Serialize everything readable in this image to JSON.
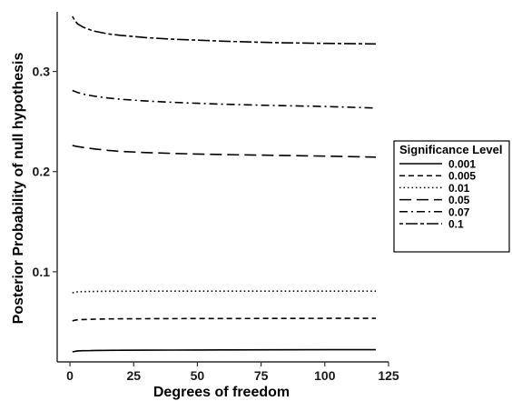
{
  "chart_data": {
    "type": "line",
    "title": "",
    "xlabel": "Degrees of freedom",
    "ylabel": "Posterior Probability of null hypothesis",
    "xlim": [
      -5,
      125
    ],
    "ylim": [
      0.01,
      0.355
    ],
    "x_ticks": [
      0,
      25,
      50,
      75,
      100,
      125
    ],
    "x_tick_labels": [
      "0",
      "25",
      "50",
      "75",
      "100",
      "125"
    ],
    "y_ticks": [
      0.1,
      0.2,
      0.3
    ],
    "y_tick_labels": [
      "0.1",
      "0.2",
      "0.3"
    ],
    "grid": false,
    "legend": {
      "title": "Significance Level",
      "placement": "right"
    },
    "x": [
      1,
      2,
      3,
      5,
      8,
      10,
      15,
      20,
      30,
      40,
      50,
      60,
      80,
      100,
      120
    ],
    "series": [
      {
        "name": "0.001",
        "dash": "solid",
        "values": [
          0.02,
          0.0205,
          0.021,
          0.0212,
          0.0213,
          0.0214,
          0.0215,
          0.0216,
          0.0217,
          0.0218,
          0.0219,
          0.022,
          0.0221,
          0.0222,
          0.0222
        ]
      },
      {
        "name": "0.005",
        "dash": "dashed",
        "values": [
          0.051,
          0.0517,
          0.052,
          0.0523,
          0.0525,
          0.0527,
          0.0529,
          0.053,
          0.0531,
          0.0532,
          0.0533,
          0.0533,
          0.0534,
          0.0535,
          0.0535
        ]
      },
      {
        "name": "0.01",
        "dash": "dotted",
        "values": [
          0.079,
          0.0795,
          0.08,
          0.0802,
          0.0803,
          0.0804,
          0.0805,
          0.0805,
          0.0806,
          0.0806,
          0.0806,
          0.0806,
          0.0806,
          0.0806,
          0.0806
        ]
      },
      {
        "name": "0.05",
        "dash": "longdash",
        "values": [
          0.226,
          0.2255,
          0.225,
          0.2242,
          0.2232,
          0.2225,
          0.2212,
          0.2202,
          0.219,
          0.2182,
          0.2175,
          0.217,
          0.2163,
          0.2155,
          0.2145
        ]
      },
      {
        "name": "0.07",
        "dash": "dashdot",
        "values": [
          0.281,
          0.28,
          0.279,
          0.2775,
          0.276,
          0.2752,
          0.2735,
          0.2722,
          0.2705,
          0.2692,
          0.2682,
          0.2673,
          0.266,
          0.265,
          0.2635
        ]
      },
      {
        "name": "0.1",
        "dash": "twodash",
        "values": [
          0.355,
          0.3505,
          0.3475,
          0.3445,
          0.3415,
          0.34,
          0.3375,
          0.336,
          0.3338,
          0.3322,
          0.3312,
          0.3302,
          0.3288,
          0.328,
          0.3275
        ]
      }
    ]
  }
}
